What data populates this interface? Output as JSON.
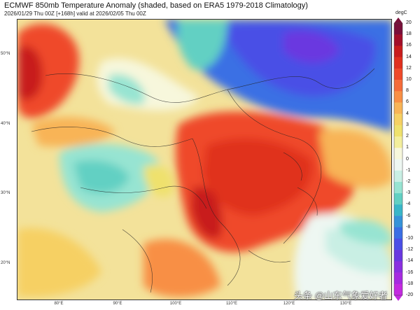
{
  "header": {
    "title": "ECMWF 850mb Temperature Anomaly (shaded, based on ERA5 1979-2018 Climatology)",
    "subtitle": "2026/01/29 Thu 00Z [+168h] valid at 2026/02/05 Thu 00Z"
  },
  "map": {
    "lat_labels": [
      "50°N",
      "40°N",
      "30°N",
      "20°N"
    ],
    "lon_labels": [
      "80°E",
      "90°E",
      "100°E",
      "110°E",
      "120°E",
      "130°E"
    ]
  },
  "colorbar": {
    "unit": "degC",
    "ticks": [
      "20",
      "18",
      "16",
      "14",
      "12",
      "10",
      "8",
      "6",
      "4",
      "3",
      "2",
      "1",
      "0",
      "-1",
      "-2",
      "-3",
      "-4",
      "-6",
      "-8",
      "-10",
      "-12",
      "-14",
      "-16",
      "-18",
      "-20"
    ],
    "colors": [
      "#7a0f3a",
      "#a30f2a",
      "#c81d1d",
      "#e0301e",
      "#ef4a2a",
      "#f56c3a",
      "#f88f45",
      "#f8b457",
      "#f6d064",
      "#efe16d",
      "#f3ee9c",
      "#f7f7dc",
      "#eef7f2",
      "#c9efe4",
      "#97e4d2",
      "#62d0c3",
      "#39b6c9",
      "#3693d9",
      "#3a6fe4",
      "#4a4fe6",
      "#6a38e0",
      "#8a2fe0",
      "#a62be0",
      "#c42ae0"
    ]
  },
  "watermark": "头条 @山东气象爱好者"
}
